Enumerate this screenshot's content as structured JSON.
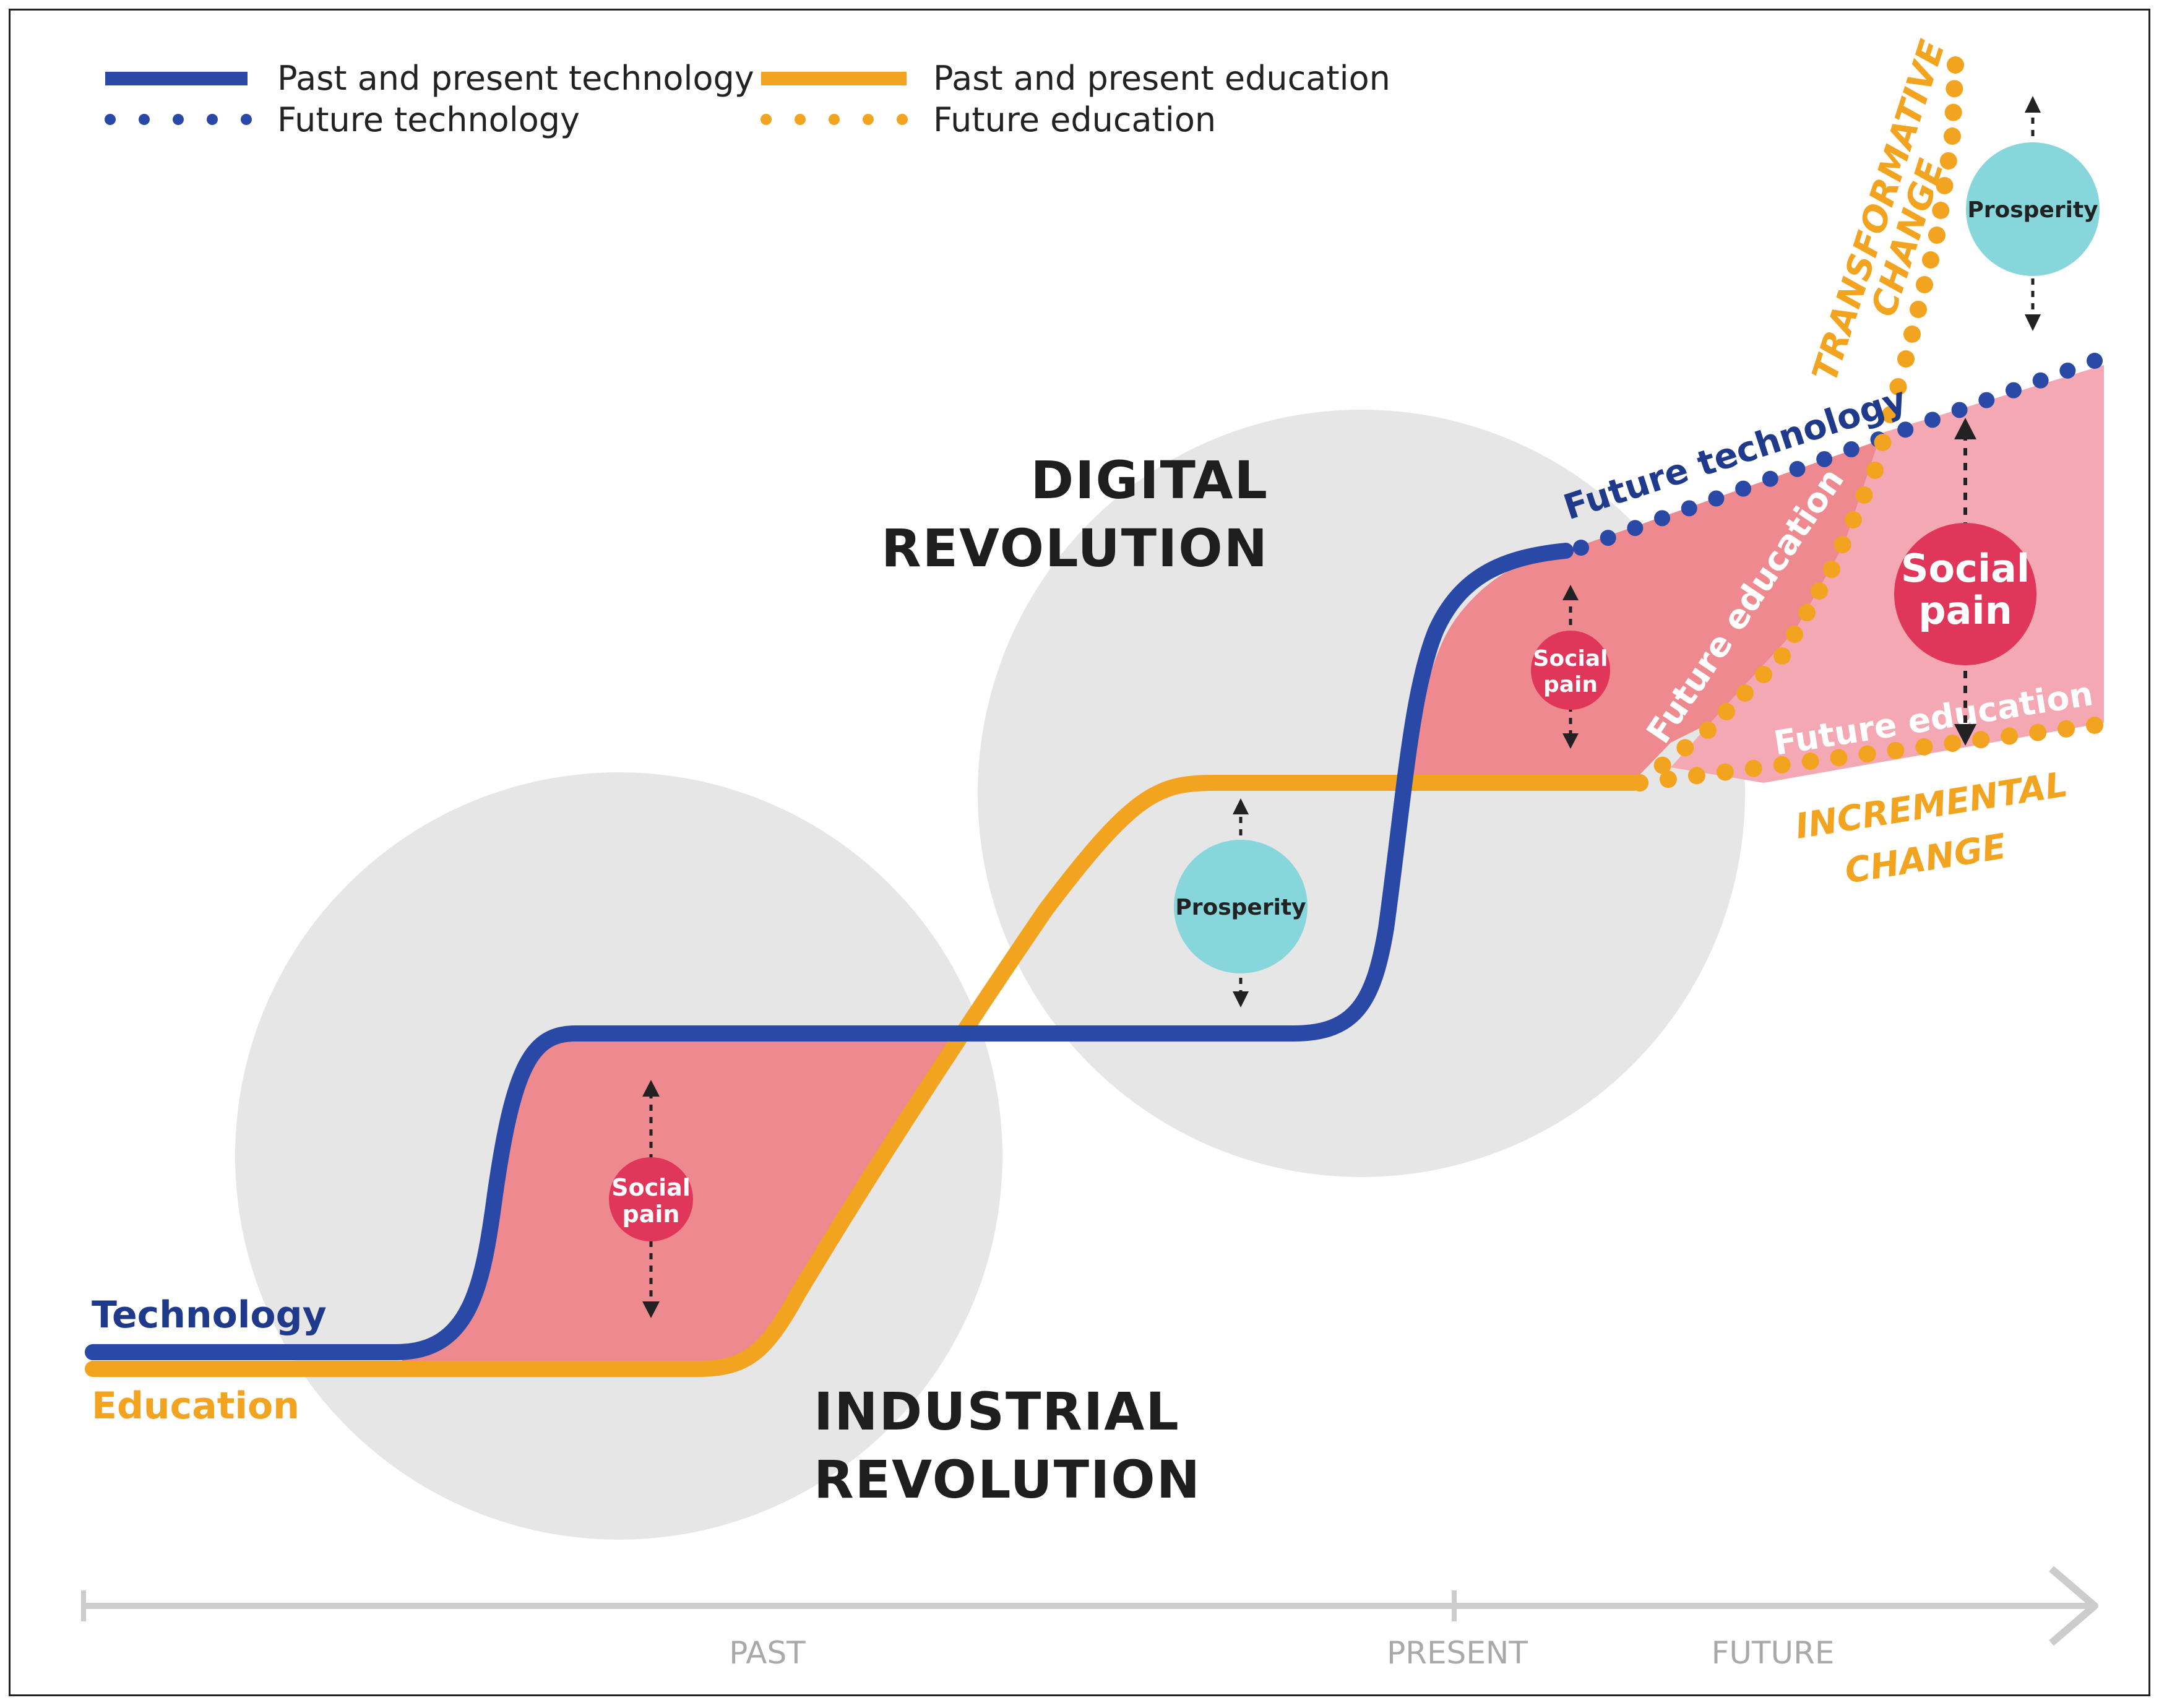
{
  "legend": {
    "past_tech": "Past and present technology",
    "future_tech": "Future technology",
    "past_edu": "Past and present education",
    "future_edu": "Future education"
  },
  "titles": {
    "digital_1": "DIGITAL",
    "digital_2": "REVOLUTION",
    "industrial_1": "INDUSTRIAL",
    "industrial_2": "REVOLUTION"
  },
  "labels": {
    "technology": "Technology",
    "education": "Education",
    "future_technology": "Future technology",
    "future_education_steep": "Future education",
    "future_education_flat": "Future education",
    "transformative_1": "TRANSFORMATIVE",
    "transformative_2": "CHANGE",
    "incremental_1": "INCREMENTAL",
    "incremental_2": "CHANGE"
  },
  "bubbles": {
    "social_pain_1a": "Social",
    "social_pain_1b": "pain",
    "social_pain_2a": "Social",
    "social_pain_2b": "pain",
    "social_pain_3a": "Social",
    "social_pain_3b": "pain",
    "prosperity_1": "Prosperity",
    "prosperity_2": "Prosperity"
  },
  "timeline": {
    "past": "PAST",
    "present": "PRESENT",
    "future": "FUTURE"
  },
  "colors": {
    "technology": "#2a49a6",
    "education": "#f2a31f",
    "social_pain_fill": "#ee8a8f",
    "social_pain_light": "#f4a8b3",
    "social_bubble": "#e0365a",
    "prosperity_bubble": "#86d6dc",
    "era_circle": "#e6e6e6",
    "axis": "#cccccc"
  }
}
